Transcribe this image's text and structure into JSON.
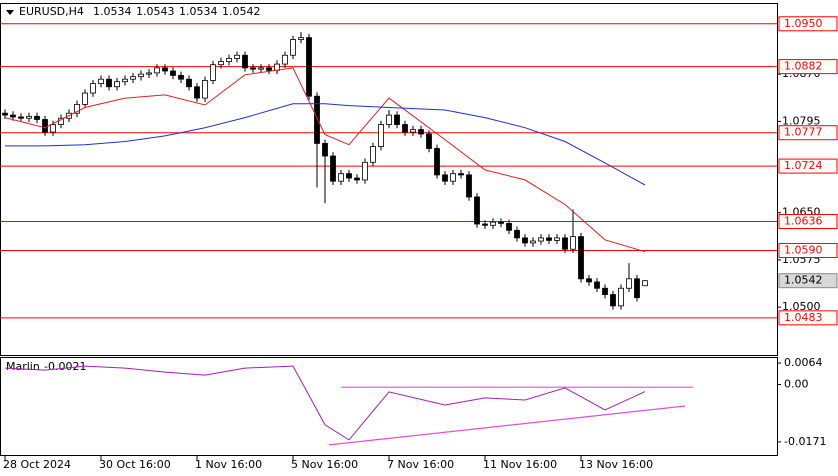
{
  "chart_data": [
    {
      "type": "candlestick",
      "title": "EURUSD,H4",
      "open": [
        1.0808,
        1.0805,
        1.0802,
        1.08,
        1.0803,
        1.0798,
        1.0778,
        1.079,
        1.08,
        1.0808,
        1.0822,
        1.084,
        1.0855,
        1.0862,
        1.085,
        1.0858,
        1.0862,
        1.0866,
        1.087,
        1.0872,
        1.088,
        1.0875,
        1.0868,
        1.0862,
        1.085,
        1.0832,
        1.086,
        1.0885,
        1.089,
        1.0895,
        1.09,
        1.088,
        1.0878,
        1.088,
        1.0876,
        1.0886,
        1.09,
        1.0925,
        1.0928,
        1.0835,
        1.076,
        1.074,
        1.07,
        1.0712,
        1.0705,
        1.0702,
        1.073,
        1.0755,
        1.079,
        1.0805,
        1.079,
        1.0778,
        1.0782,
        1.0775,
        1.0752,
        1.071,
        1.07,
        1.0712,
        1.071,
        1.0675,
        1.0632,
        1.063,
        1.0635,
        1.0633,
        1.0622,
        1.061,
        1.0602,
        1.0605,
        1.061,
        1.0606,
        1.061,
        1.0592,
        1.0612,
        1.0545,
        1.054,
        1.053,
        1.052,
        1.0502,
        1.053,
        1.0545,
        1.0534
      ],
      "high": [
        1.0814,
        1.0811,
        1.0808,
        1.0809,
        1.0809,
        1.0804,
        1.0796,
        1.0806,
        1.0814,
        1.0828,
        1.0846,
        1.0861,
        1.0868,
        1.0868,
        1.0864,
        1.0868,
        1.0872,
        1.0876,
        1.0878,
        1.0886,
        1.0886,
        1.0881,
        1.0874,
        1.0868,
        1.0856,
        1.0866,
        1.0891,
        1.0896,
        1.0901,
        1.0906,
        1.0906,
        1.0886,
        1.0886,
        1.0886,
        1.0892,
        1.0906,
        1.0931,
        1.0937,
        1.0934,
        1.0841,
        1.0766,
        1.0746,
        1.0718,
        1.0718,
        1.0711,
        1.0736,
        1.0761,
        1.0796,
        1.0813,
        1.0811,
        1.0796,
        1.0788,
        1.0788,
        1.0781,
        1.0758,
        1.0716,
        1.0718,
        1.0718,
        1.0716,
        1.0681,
        1.0638,
        1.0641,
        1.0641,
        1.0639,
        1.0628,
        1.0616,
        1.0611,
        1.0616,
        1.0616,
        1.0616,
        1.0616,
        1.0655,
        1.0618,
        1.0551,
        1.0546,
        1.0536,
        1.0526,
        1.0536,
        1.057,
        1.0551,
        1.0543
      ],
      "low": [
        1.0799,
        1.0796,
        1.0794,
        1.0794,
        1.0792,
        1.0772,
        1.0772,
        1.0784,
        1.0794,
        1.0802,
        1.0816,
        1.0834,
        1.0849,
        1.0844,
        1.0844,
        1.0852,
        1.0856,
        1.086,
        1.0864,
        1.0866,
        1.0869,
        1.0862,
        1.0856,
        1.0844,
        1.0826,
        1.0826,
        1.0854,
        1.0879,
        1.0884,
        1.0889,
        1.0874,
        1.0872,
        1.0872,
        1.087,
        1.087,
        1.088,
        1.0894,
        1.0919,
        1.0829,
        1.069,
        1.0665,
        1.0694,
        1.0694,
        1.0699,
        1.0696,
        1.0696,
        1.0724,
        1.0749,
        1.0784,
        1.0784,
        1.0772,
        1.0772,
        1.0769,
        1.0746,
        1.0704,
        1.0694,
        1.0694,
        1.0704,
        1.0669,
        1.0626,
        1.0624,
        1.0624,
        1.0627,
        1.0616,
        1.0604,
        1.0596,
        1.0596,
        1.0599,
        1.06,
        1.06,
        1.0586,
        1.0586,
        1.0539,
        1.0534,
        1.0524,
        1.0514,
        1.0496,
        1.0496,
        1.0524,
        1.0509,
        1.0534
      ],
      "close": [
        1.0805,
        1.0802,
        1.08,
        1.0803,
        1.0798,
        1.0778,
        1.079,
        1.08,
        1.0808,
        1.0822,
        1.084,
        1.0855,
        1.0862,
        1.085,
        1.0858,
        1.0862,
        1.0866,
        1.087,
        1.0872,
        1.088,
        1.0875,
        1.0868,
        1.0862,
        1.085,
        1.0832,
        1.086,
        1.0885,
        1.089,
        1.0895,
        1.09,
        1.088,
        1.0878,
        1.088,
        1.0876,
        1.0886,
        1.09,
        1.0925,
        1.0928,
        1.0835,
        1.076,
        1.074,
        1.07,
        1.0712,
        1.0705,
        1.0702,
        1.073,
        1.0755,
        1.079,
        1.0805,
        1.079,
        1.0778,
        1.0782,
        1.0775,
        1.0752,
        1.071,
        1.07,
        1.0712,
        1.071,
        1.0675,
        1.0632,
        1.063,
        1.0635,
        1.0633,
        1.0622,
        1.061,
        1.0602,
        1.0605,
        1.061,
        1.0606,
        1.061,
        1.0592,
        1.0612,
        1.0545,
        1.054,
        1.053,
        1.052,
        1.0502,
        1.053,
        1.0545,
        1.0515,
        1.0542
      ],
      "series": [
        {
          "color": "#e0201c",
          "x": [
            0,
            5,
            10,
            15,
            20,
            25,
            30,
            36,
            40,
            43,
            48,
            55,
            60,
            65,
            70,
            75,
            80
          ],
          "values": [
            1.0801,
            1.0785,
            1.0817,
            1.0832,
            1.0837,
            1.0821,
            1.0869,
            1.088,
            1.0774,
            1.0758,
            1.0832,
            1.0766,
            1.0718,
            1.0702,
            1.0663,
            1.0607,
            1.0588
          ]
        },
        {
          "color": "#2030c8",
          "x": [
            0,
            5,
            10,
            15,
            20,
            25,
            30,
            36,
            40,
            43,
            48,
            55,
            60,
            65,
            70,
            75,
            80
          ],
          "values": [
            1.0756,
            1.0756,
            1.0758,
            1.0763,
            1.0772,
            1.0785,
            1.0801,
            1.0823,
            1.0823,
            1.082,
            1.0817,
            1.0813,
            1.0801,
            1.0785,
            1.0763,
            1.0729,
            1.0694
          ]
        }
      ],
      "levels": [
        {
          "value": 1.095,
          "label": "1.0950"
        },
        1.0882,
        1.0777,
        1.0724,
        1.0636,
        {
          "value": 1.059,
          "label": "1.0590"
        },
        1.0483
      ],
      "level_color": "#ff0000",
      "xlim": [
        -0.625,
        96.5
      ],
      "ylim": [
        1.0424,
        1.0983
      ],
      "yticks": [
        {
          "value": 1.05,
          "label": "1.0500"
        },
        1.0575,
        {
          "value": 1.065,
          "label": "1.0650"
        },
        1.0795,
        {
          "value": 1.087,
          "label": "1.0870"
        }
      ],
      "xticks": [
        {
          "value": 0,
          "label": "28 Oct 2024"
        },
        {
          "value": 12,
          "label": "30 Oct 16:00"
        },
        {
          "value": 24,
          "label": "1 Nov 16:00"
        },
        {
          "value": 36,
          "label": "5 Nov 16:00"
        },
        {
          "value": 48,
          "label": "7 Nov 16:00"
        },
        {
          "value": 60,
          "label": "11 Nov 16:00"
        },
        {
          "value": 72,
          "label": "13 Nov 16:00"
        }
      ]
    },
    {
      "type": "line",
      "title": "Marlin",
      "series": [
        {
          "color": "#a020b0",
          "x": [
            0,
            5,
            10,
            15,
            20,
            25,
            30,
            36,
            40,
            43,
            48,
            55,
            60,
            65,
            70,
            75,
            80
          ],
          "values": [
            0.0049,
            0.0043,
            0.0055,
            0.0049,
            0.0037,
            0.0028,
            0.0049,
            0.0055,
            -0.012,
            -0.0165,
            -0.0022,
            -0.0061,
            -0.004,
            -0.0046,
            -0.001,
            -0.0076,
            -0.0021
          ]
        }
      ],
      "trendlines": [
        {
          "x": [
            42,
            86
          ],
          "values": [
            -0.0008,
            -0.0008
          ]
        },
        {
          "x": [
            40.5,
            85
          ],
          "values": [
            -0.018,
            -0.0064
          ]
        }
      ],
      "trendline_color": "#e050e0",
      "ylim": [
        -0.021,
        0.0082
      ],
      "yticks": [
        0.0064,
        {
          "value": 0,
          "label": "0.00"
        },
        -0.0171
      ]
    }
  ]
}
